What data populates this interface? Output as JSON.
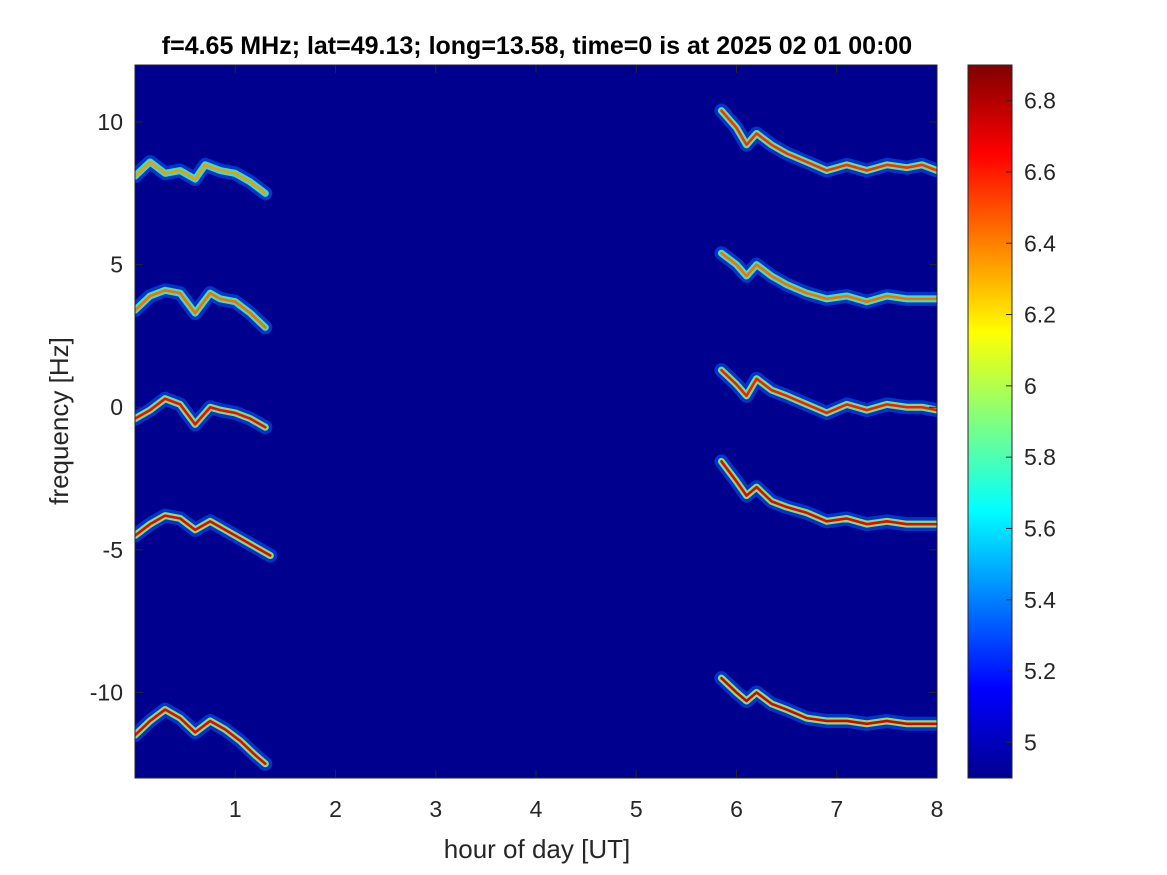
{
  "chart_data": {
    "type": "heatmap",
    "title": "f=4.65 MHz;  lat=49.13; long=13.58, time=0 is at 2025 02 01 00:00",
    "xlabel": "hour of day [UT]",
    "ylabel": "frequency [Hz]",
    "xlim": [
      0,
      8
    ],
    "ylim": [
      -13,
      12
    ],
    "x_ticks": [
      1,
      2,
      3,
      4,
      5,
      6,
      7,
      8
    ],
    "y_ticks": [
      -10,
      -5,
      0,
      5,
      10
    ],
    "x_tick_labels": [
      "1",
      "2",
      "3",
      "4",
      "5",
      "6",
      "7",
      "8"
    ],
    "y_tick_labels": [
      "-10",
      "-5",
      "0",
      "5",
      "10"
    ],
    "colormap": "jet",
    "background_color": "#00008f",
    "colorbar": {
      "clim": [
        4.9,
        6.9
      ],
      "ticks": [
        5,
        5.2,
        5.4,
        5.6,
        5.8,
        6,
        6.2,
        6.4,
        6.6,
        6.8
      ],
      "tick_labels": [
        "5",
        "5.2",
        "5.4",
        "5.6",
        "5.8",
        "6",
        "6.2",
        "6.4",
        "6.6",
        "6.8"
      ]
    },
    "traces": [
      {
        "band": "+8",
        "points": [
          [
            0.0,
            8.1
          ],
          [
            0.15,
            8.6
          ],
          [
            0.3,
            8.2
          ],
          [
            0.45,
            8.3
          ],
          [
            0.6,
            8.0
          ],
          [
            0.7,
            8.5
          ],
          [
            0.85,
            8.3
          ],
          [
            1.0,
            8.2
          ],
          [
            1.15,
            7.9
          ],
          [
            1.3,
            7.5
          ]
        ],
        "intensity": 0.45
      },
      {
        "band": "+4",
        "points": [
          [
            0.0,
            3.4
          ],
          [
            0.15,
            3.9
          ],
          [
            0.3,
            4.1
          ],
          [
            0.45,
            4.0
          ],
          [
            0.6,
            3.3
          ],
          [
            0.75,
            4.0
          ],
          [
            0.85,
            3.8
          ],
          [
            1.0,
            3.7
          ],
          [
            1.15,
            3.3
          ],
          [
            1.3,
            2.8
          ]
        ],
        "intensity": 0.55
      },
      {
        "band": "0",
        "points": [
          [
            0.0,
            -0.4
          ],
          [
            0.15,
            -0.1
          ],
          [
            0.3,
            0.3
          ],
          [
            0.45,
            0.1
          ],
          [
            0.6,
            -0.6
          ],
          [
            0.75,
            0.0
          ],
          [
            0.85,
            -0.1
          ],
          [
            1.0,
            -0.2
          ],
          [
            1.15,
            -0.4
          ],
          [
            1.3,
            -0.7
          ]
        ],
        "intensity": 0.8
      },
      {
        "band": "-4",
        "points": [
          [
            0.0,
            -4.5
          ],
          [
            0.15,
            -4.1
          ],
          [
            0.3,
            -3.8
          ],
          [
            0.45,
            -3.9
          ],
          [
            0.6,
            -4.3
          ],
          [
            0.75,
            -4.0
          ],
          [
            0.9,
            -4.3
          ],
          [
            1.05,
            -4.6
          ],
          [
            1.2,
            -4.9
          ],
          [
            1.35,
            -5.2
          ]
        ],
        "intensity": 0.85
      },
      {
        "band": "-11",
        "points": [
          [
            0.0,
            -11.5
          ],
          [
            0.15,
            -11.0
          ],
          [
            0.3,
            -10.6
          ],
          [
            0.45,
            -10.9
          ],
          [
            0.6,
            -11.4
          ],
          [
            0.75,
            -11.0
          ],
          [
            0.9,
            -11.3
          ],
          [
            1.05,
            -11.7
          ],
          [
            1.2,
            -12.2
          ],
          [
            1.3,
            -12.5
          ]
        ],
        "intensity": 0.85
      },
      {
        "band": "+8",
        "points": [
          [
            5.85,
            10.4
          ],
          [
            6.0,
            9.8
          ],
          [
            6.1,
            9.2
          ],
          [
            6.2,
            9.6
          ],
          [
            6.35,
            9.2
          ],
          [
            6.5,
            8.9
          ],
          [
            6.7,
            8.6
          ],
          [
            6.9,
            8.3
          ],
          [
            7.1,
            8.5
          ],
          [
            7.3,
            8.3
          ],
          [
            7.5,
            8.5
          ],
          [
            7.7,
            8.4
          ],
          [
            7.85,
            8.5
          ],
          [
            8.0,
            8.3
          ]
        ],
        "intensity": 0.7
      },
      {
        "band": "+4",
        "points": [
          [
            5.85,
            5.4
          ],
          [
            6.0,
            5.0
          ],
          [
            6.1,
            4.6
          ],
          [
            6.2,
            5.0
          ],
          [
            6.35,
            4.6
          ],
          [
            6.5,
            4.3
          ],
          [
            6.7,
            4.0
          ],
          [
            6.9,
            3.8
          ],
          [
            7.1,
            3.9
          ],
          [
            7.3,
            3.7
          ],
          [
            7.5,
            3.9
          ],
          [
            7.7,
            3.8
          ],
          [
            7.85,
            3.8
          ],
          [
            8.0,
            3.8
          ]
        ],
        "intensity": 0.55
      },
      {
        "band": "0",
        "points": [
          [
            5.85,
            1.3
          ],
          [
            6.0,
            0.8
          ],
          [
            6.1,
            0.4
          ],
          [
            6.2,
            1.0
          ],
          [
            6.35,
            0.6
          ],
          [
            6.5,
            0.4
          ],
          [
            6.7,
            0.1
          ],
          [
            6.9,
            -0.2
          ],
          [
            7.1,
            0.1
          ],
          [
            7.3,
            -0.1
          ],
          [
            7.5,
            0.1
          ],
          [
            7.7,
            0.0
          ],
          [
            7.85,
            0.0
          ],
          [
            8.0,
            -0.1
          ]
        ],
        "intensity": 0.75
      },
      {
        "band": "-4",
        "points": [
          [
            5.85,
            -1.9
          ],
          [
            6.0,
            -2.6
          ],
          [
            6.1,
            -3.1
          ],
          [
            6.2,
            -2.8
          ],
          [
            6.35,
            -3.3
          ],
          [
            6.5,
            -3.5
          ],
          [
            6.7,
            -3.7
          ],
          [
            6.9,
            -4.0
          ],
          [
            7.1,
            -3.9
          ],
          [
            7.3,
            -4.1
          ],
          [
            7.5,
            -4.0
          ],
          [
            7.7,
            -4.1
          ],
          [
            7.85,
            -4.1
          ],
          [
            8.0,
            -4.1
          ]
        ],
        "intensity": 0.85
      },
      {
        "band": "-11",
        "points": [
          [
            5.85,
            -9.5
          ],
          [
            6.0,
            -10.0
          ],
          [
            6.1,
            -10.3
          ],
          [
            6.2,
            -10.0
          ],
          [
            6.35,
            -10.4
          ],
          [
            6.5,
            -10.6
          ],
          [
            6.7,
            -10.9
          ],
          [
            6.9,
            -11.0
          ],
          [
            7.1,
            -11.0
          ],
          [
            7.3,
            -11.1
          ],
          [
            7.5,
            -11.0
          ],
          [
            7.7,
            -11.1
          ],
          [
            7.85,
            -11.1
          ],
          [
            8.0,
            -11.1
          ]
        ],
        "intensity": 0.9
      }
    ]
  }
}
